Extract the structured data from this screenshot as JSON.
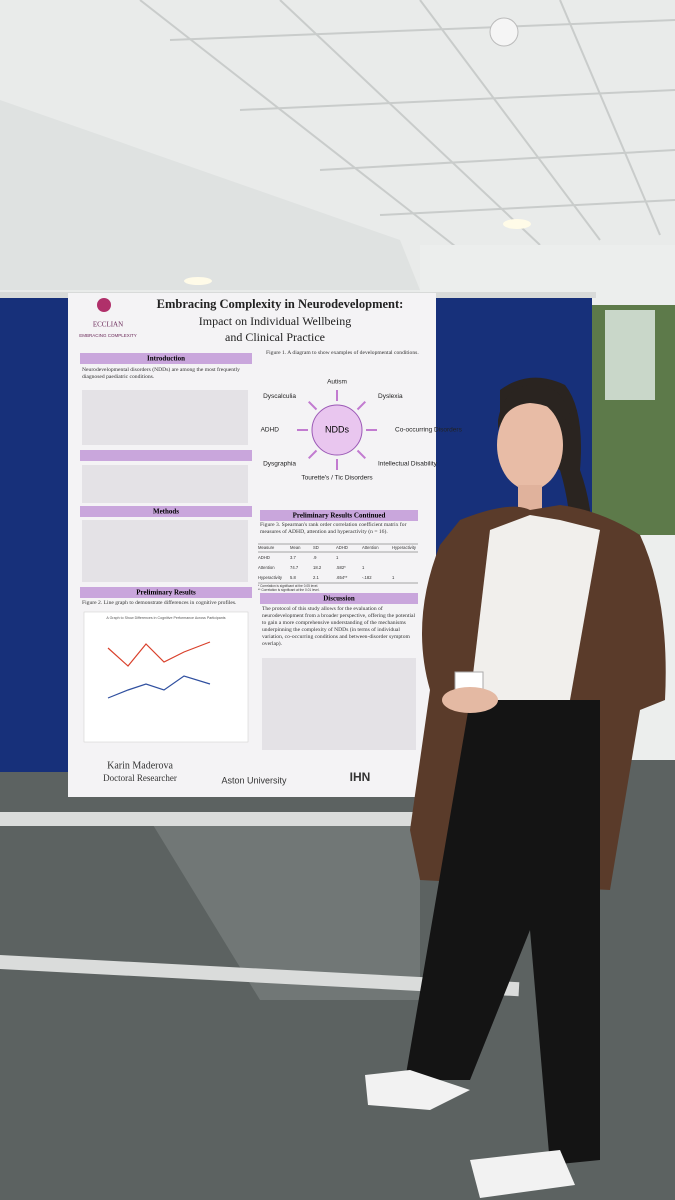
{
  "poster": {
    "logo": {
      "name": "ECCLIAN",
      "tagline": "EMBRACING COMPLEXITY"
    },
    "title": "Embracing Complexity in Neurodevelopment:",
    "subtitle_lines": [
      "Impact on Individual Wellbeing",
      "and Clinical Practice"
    ],
    "introduction": {
      "header": "Introduction",
      "text": "Neurodevelopmental disorders (NDDs) are among the most frequently diagnosed paediatric conditions."
    },
    "methods": {
      "header": "Methods"
    },
    "results": {
      "header": "Preliminary Results",
      "caption": "Figure 2. Line graph to demonstrate differences in cognitive profiles.",
      "chart_title": "A Graph to Show Differences in Cognitive Performance Across Participants"
    },
    "figure1": {
      "caption": "Figure 1. A diagram to show examples of developmental conditions.",
      "center": "NDDs",
      "nodes": [
        "Autism",
        "Dyslexia",
        "Co-occurring Disorders",
        "Intellectual Disability",
        "Tourette's / Tic Disorders",
        "Dysgraphia",
        "ADHD",
        "Dyscalculia"
      ]
    },
    "results_continued": {
      "header": "Preliminary Results Continued",
      "caption": "Figure 3. Spearman's rank order correlation coefficient matrix for measures of ADHD, attention and hyperactivity (n = 16).",
      "columns": [
        "Measure",
        "Mean",
        "SD",
        "ADHD",
        "Attention",
        "Hyperactivity"
      ],
      "rows": [
        [
          "ADHD",
          "3.7",
          ".9",
          "1",
          "",
          ""
        ],
        [
          "Attention",
          "74.7",
          "18.2",
          ".582*",
          "1",
          ""
        ],
        [
          "Hyperactivity",
          "5.8",
          "2.1",
          ".654**",
          "-.182",
          "1"
        ]
      ],
      "notes": [
        "* Correlation is significant at the 0.05 level.",
        "** Correlation is significant at the 0.01 level."
      ]
    },
    "discussion": {
      "header": "Discussion",
      "text": "The protocol of this study allows for the evaluation of neurodevelopment from a broader perspective, offering the potential to gain a more comprehensive understanding of the mechanisms underpinning the complexity of NDDs (in terms of individual variation, co-occurring conditions and between-disorder symptom overlap)."
    },
    "footer": {
      "author": "Karin Maderova",
      "role": "Doctoral Researcher",
      "university": "Aston University",
      "institute": "IHN"
    }
  }
}
